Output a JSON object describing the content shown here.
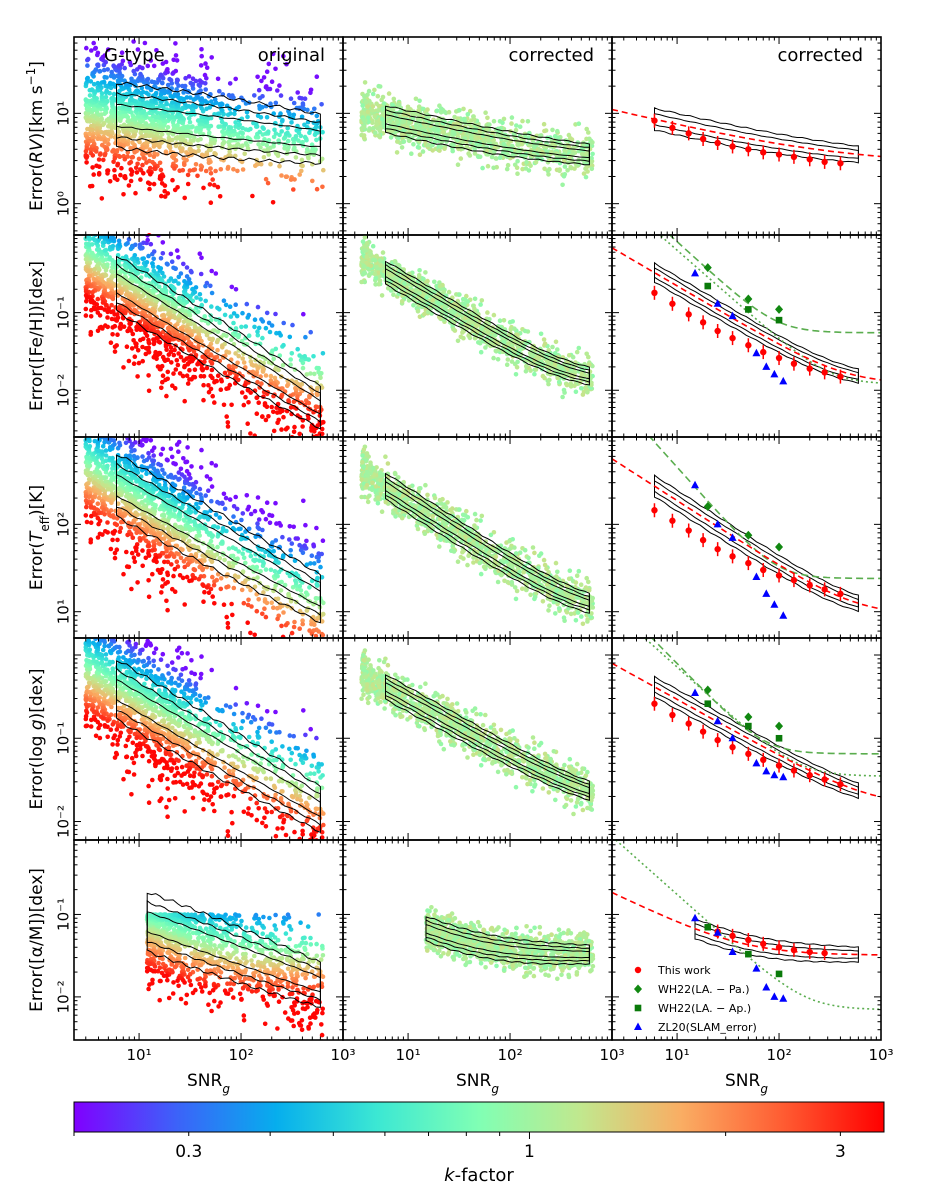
{
  "figure": {
    "star_type_label": "G-type",
    "column_titles": [
      "original",
      "corrected",
      "corrected"
    ],
    "x_axis_label_html": "SNR",
    "x_axis_label_sub": "g",
    "x_tick_labels": [
      "10¹",
      "10²",
      "10³"
    ],
    "colorbar": {
      "label": "k-factor",
      "label_prefix": "k",
      "label_suffix": "-factor",
      "tick_values": [
        0.3,
        1,
        3
      ],
      "tick_labels": [
        "0.3",
        "1",
        "3"
      ],
      "range": [
        0.2,
        3.5
      ],
      "colormap": "rainbow",
      "colors": [
        "#8000ff",
        "#3d61f9",
        "#06aeed",
        "#3ce8d3",
        "#80ffb4",
        "#c1e88e",
        "#faad63",
        "#ff5c32",
        "#ff0000"
      ]
    }
  },
  "chart_data": [
    {
      "type": "scatter",
      "row": 0,
      "ylabel": "Error(RV)[kms⁻¹]",
      "ylabel_parts": [
        "Error(",
        "RV",
        ")[km s",
        "−1",
        "]"
      ],
      "xscale": "log",
      "yscale": "log",
      "xlim": [
        2.3,
        1000
      ],
      "ylim": [
        0.45,
        70
      ],
      "y_tick_labels": [
        "10⁰",
        "10¹"
      ],
      "y_tick_values": [
        1,
        10
      ],
      "scatter_model": {
        "a": 12.0,
        "b": -0.13,
        "sigma": 0.32,
        "cmax": 120
      },
      "corrected_model": {
        "a": 13.5,
        "b": -0.28,
        "floor": 2.7
      },
      "points_third_panel": {
        "this_work": {
          "snr": [
            6,
            9,
            13,
            18,
            25,
            35,
            50,
            70,
            100,
            140,
            200,
            280,
            400
          ],
          "err": [
            8.3,
            6.9,
            6.0,
            5.2,
            4.7,
            4.3,
            4.0,
            3.7,
            3.5,
            3.3,
            3.1,
            2.9,
            2.8
          ]
        },
        "wh22_pa": null,
        "wh22_ap": null,
        "zl20": null
      },
      "reference_curves": []
    },
    {
      "type": "scatter",
      "row": 1,
      "ylabel": "Error([Fe/H])[dex]",
      "ylabel_parts": [
        "Error([Fe/H])[dex]"
      ],
      "xscale": "log",
      "yscale": "log",
      "xlim": [
        2.3,
        1000
      ],
      "ylim": [
        0.0025,
        1.0
      ],
      "y_tick_labels": [
        "10⁻²",
        "10⁻¹"
      ],
      "y_tick_values": [
        0.01,
        0.1
      ],
      "scatter_model": {
        "a": 1.0,
        "b": -0.8,
        "sigma": 0.38,
        "cmax": 100
      },
      "corrected_model": {
        "a": 1.3,
        "b": -0.77,
        "floor": 0.012
      },
      "points_third_panel": {
        "this_work": {
          "snr": [
            6,
            9,
            13,
            18,
            25,
            35,
            50,
            70,
            100,
            140,
            200,
            280,
            400
          ],
          "err": [
            0.18,
            0.13,
            0.095,
            0.075,
            0.058,
            0.047,
            0.038,
            0.031,
            0.026,
            0.022,
            0.019,
            0.017,
            0.015
          ]
        },
        "wh22_pa": {
          "snr": [
            20,
            50,
            100
          ],
          "err": [
            0.38,
            0.15,
            0.11
          ]
        },
        "wh22_ap": {
          "snr": [
            20,
            50,
            100
          ],
          "err": [
            0.22,
            0.11,
            0.08
          ]
        },
        "zl20": {
          "snr": [
            15,
            25,
            35,
            60,
            75,
            90,
            110
          ],
          "err": [
            0.32,
            0.13,
            0.09,
            0.03,
            0.02,
            0.016,
            0.013
          ]
        }
      },
      "reference_curves": [
        {
          "name": "WH22 dashed",
          "style": "dashed",
          "a": 13,
          "b": -1.2,
          "floor": 0.055
        },
        {
          "name": "WH22 dotted",
          "style": "dotted",
          "a": 9,
          "b": -1.15,
          "floor": 0.012
        }
      ]
    },
    {
      "type": "scatter",
      "row": 2,
      "ylabel": "Error(Teff)[K]",
      "ylabel_parts": [
        "Error(",
        "T",
        "eff",
        ")[K]"
      ],
      "xscale": "log",
      "yscale": "log",
      "xlim": [
        2.3,
        1000
      ],
      "ylim": [
        5,
        1000
      ],
      "y_tick_labels": [
        "10¹",
        "10²"
      ],
      "y_tick_values": [
        10,
        100
      ],
      "scatter_model": {
        "a": 900,
        "b": -0.65,
        "sigma": 0.36,
        "cmax": 100
      },
      "corrected_model": {
        "a": 1050,
        "b": -0.75,
        "floor": 9
      },
      "points_third_panel": {
        "this_work": {
          "snr": [
            6,
            9,
            13,
            18,
            25,
            35,
            50,
            70,
            100,
            140,
            200,
            280,
            400
          ],
          "err": [
            145,
            110,
            85,
            66,
            52,
            43,
            36,
            30,
            26,
            23,
            20,
            18,
            16
          ]
        },
        "wh22_pa": {
          "snr": [
            20,
            50,
            100
          ],
          "err": [
            160,
            75,
            55
          ]
        },
        "wh22_ap": null,
        "zl20": {
          "snr": [
            15,
            25,
            35,
            60,
            75,
            90,
            110
          ],
          "err": [
            280,
            100,
            70,
            25,
            16,
            12,
            9
          ]
        }
      },
      "reference_curves": [
        {
          "name": "WH22 dashed",
          "style": "dashed",
          "a": 9000,
          "b": -1.3,
          "floor": 24
        }
      ]
    },
    {
      "type": "scatter",
      "row": 3,
      "ylabel": "Error(log g)[dex]",
      "ylabel_parts": [
        "Error(log ",
        "g",
        ")[dex]"
      ],
      "xscale": "log",
      "yscale": "log",
      "xlim": [
        2.3,
        1000
      ],
      "ylim": [
        0.006,
        1.6
      ],
      "y_tick_labels": [
        "10⁻²",
        "10⁻¹"
      ],
      "y_tick_values": [
        0.01,
        0.1
      ],
      "scatter_model": {
        "a": 1.4,
        "b": -0.72,
        "sigma": 0.38,
        "cmax": 110
      },
      "corrected_model": {
        "a": 1.4,
        "b": -0.68,
        "floor": 0.015
      },
      "points_third_panel": {
        "this_work": {
          "snr": [
            6,
            9,
            13,
            18,
            25,
            35,
            50,
            70,
            100,
            140,
            200,
            280,
            400
          ],
          "err": [
            0.26,
            0.19,
            0.15,
            0.12,
            0.095,
            0.078,
            0.065,
            0.055,
            0.047,
            0.041,
            0.036,
            0.032,
            0.028
          ]
        },
        "wh22_pa": {
          "snr": [
            20,
            50,
            100
          ],
          "err": [
            0.38,
            0.18,
            0.14
          ]
        },
        "wh22_ap": {
          "snr": [
            20,
            50,
            100
          ],
          "err": [
            0.26,
            0.14,
            0.1
          ]
        },
        "zl20": {
          "snr": [
            15,
            25,
            35,
            60,
            75,
            90,
            110
          ],
          "err": [
            0.35,
            0.16,
            0.1,
            0.05,
            0.04,
            0.036,
            0.034
          ]
        }
      },
      "reference_curves": [
        {
          "name": "WH22 dashed",
          "style": "dashed",
          "a": 14,
          "b": -1.25,
          "floor": 0.065
        },
        {
          "name": "WH22 dotted",
          "style": "dotted",
          "a": 9,
          "b": -1.1,
          "floor": 0.035
        }
      ]
    },
    {
      "type": "scatter",
      "row": 4,
      "ylabel": "Error([α/M])[dex]",
      "ylabel_parts": [
        "Error([α/M])[dex]"
      ],
      "xscale": "log",
      "yscale": "log",
      "xlim": [
        2.3,
        1000
      ],
      "ylim": [
        0.003,
        0.8
      ],
      "y_tick_labels": [
        "10⁻²",
        "10⁻¹"
      ],
      "y_tick_values": [
        0.01,
        0.1
      ],
      "scatter_model": {
        "a": 0.25,
        "b": -0.45,
        "sigma": 0.33,
        "cmax": 100,
        "snr_min": 12,
        "err_max": 0.1
      },
      "corrected_model": {
        "a": 0.3,
        "b": -0.6,
        "floor": 0.032,
        "snr_min": 15
      },
      "points_third_panel": {
        "this_work": {
          "snr": [
            25,
            35,
            50,
            70,
            100,
            140,
            200,
            280
          ],
          "err": [
            0.062,
            0.055,
            0.049,
            0.044,
            0.04,
            0.037,
            0.035,
            0.034
          ]
        },
        "wh22_pa": null,
        "wh22_ap": {
          "snr": [
            20,
            50,
            100
          ],
          "err": [
            0.07,
            0.033,
            0.019
          ]
        },
        "zl20": {
          "snr": [
            15,
            25,
            35,
            60,
            75,
            90,
            110
          ],
          "err": [
            0.09,
            0.06,
            0.035,
            0.022,
            0.013,
            0.01,
            0.0095
          ]
        }
      },
      "reference_curves": [
        {
          "name": "WH22 dotted",
          "style": "dotted",
          "a": 2.2,
          "b": -1.1,
          "floor": 0.007
        }
      ]
    }
  ],
  "legend": {
    "location": "lower-left",
    "entries": [
      {
        "label": "This work",
        "marker": "circle",
        "color": "#ff0000"
      },
      {
        "label": "WH22(LA. − Pa.)",
        "marker": "diamond",
        "color": "#118811"
      },
      {
        "label": "WH22(LA. − Ap.)",
        "marker": "square",
        "color": "#0a7a0a"
      },
      {
        "label": "ZL20(SLAM_error)",
        "marker": "triangle",
        "color": "#0000ff"
      }
    ]
  }
}
